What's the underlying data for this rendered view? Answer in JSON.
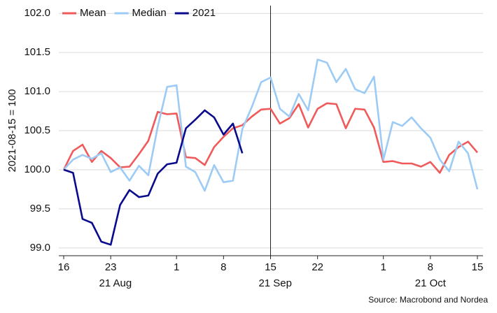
{
  "chart_data": {
    "type": "line",
    "y_label": "2021-08-15 = 100",
    "source": "Source: Macrobond and Nordea",
    "categories": [
      "2021-08-16",
      "2021-08-17",
      "2021-08-18",
      "2021-08-19",
      "2021-08-20",
      "2021-08-23",
      "2021-08-24",
      "2021-08-25",
      "2021-08-26",
      "2021-08-27",
      "2021-08-30",
      "2021-08-31",
      "2021-09-01",
      "2021-09-02",
      "2021-09-03",
      "2021-09-06",
      "2021-09-07",
      "2021-09-08",
      "2021-09-09",
      "2021-09-10",
      "2021-09-13",
      "2021-09-14",
      "2021-09-15",
      "2021-09-16",
      "2021-09-17",
      "2021-09-20",
      "2021-09-21",
      "2021-09-22",
      "2021-09-23",
      "2021-09-24",
      "2021-09-27",
      "2021-09-28",
      "2021-09-29",
      "2021-09-30",
      "2021-10-01",
      "2021-10-04",
      "2021-10-05",
      "2021-10-06",
      "2021-10-07",
      "2021-10-08",
      "2021-10-11",
      "2021-10-12",
      "2021-10-13",
      "2021-10-14",
      "2021-10-15"
    ],
    "xticks": [
      {
        "value": "2021-08-16",
        "label": "16"
      },
      {
        "value": "2021-08-23",
        "label": "23"
      },
      {
        "value": "2021-09-01",
        "label": "1"
      },
      {
        "value": "2021-09-08",
        "label": "8"
      },
      {
        "value": "2021-09-15",
        "label": "15"
      },
      {
        "value": "2021-09-22",
        "label": "22"
      },
      {
        "value": "2021-10-01",
        "label": "1"
      },
      {
        "value": "2021-10-08",
        "label": "8"
      },
      {
        "value": "2021-10-15",
        "label": "15"
      }
    ],
    "xgroups": [
      "21 Aug",
      "21 Sep",
      "21 Oct"
    ],
    "vline": "2021-09-15",
    "series": [
      {
        "name": "Mean",
        "color": "#f05a5a",
        "values": [
          100.0,
          100.24,
          100.32,
          100.1,
          100.24,
          100.15,
          100.03,
          100.04,
          100.2,
          100.37,
          100.74,
          100.71,
          100.72,
          100.16,
          100.15,
          100.06,
          100.29,
          100.42,
          100.53,
          100.57,
          100.68,
          100.77,
          100.78,
          100.59,
          100.66,
          100.84,
          100.54,
          100.78,
          100.85,
          100.84,
          100.53,
          100.78,
          100.77,
          100.54,
          100.1,
          100.11,
          100.08,
          100.08,
          100.04,
          100.1,
          99.96,
          100.19,
          100.29,
          100.36,
          100.22
        ]
      },
      {
        "name": "Median",
        "color": "#9ccbf5",
        "values": [
          100.0,
          100.13,
          100.19,
          100.14,
          100.21,
          99.97,
          100.03,
          99.86,
          100.05,
          99.93,
          100.55,
          101.06,
          101.08,
          100.04,
          99.97,
          99.73,
          100.06,
          99.84,
          99.86,
          100.52,
          100.8,
          101.12,
          101.18,
          100.78,
          100.68,
          100.97,
          100.76,
          101.41,
          101.37,
          101.12,
          101.29,
          101.03,
          100.98,
          101.19,
          100.13,
          100.61,
          100.56,
          100.67,
          100.53,
          100.41,
          100.13,
          99.98,
          100.36,
          100.21,
          99.75
        ]
      },
      {
        "name": "2021",
        "color": "#0a0a8c",
        "values": [
          100.0,
          99.96,
          99.37,
          99.32,
          99.08,
          99.04,
          99.55,
          99.74,
          99.65,
          99.67,
          99.95,
          100.07,
          100.09,
          100.53,
          100.64,
          100.76,
          100.67,
          100.45,
          100.59,
          100.21,
          null,
          null,
          null,
          null,
          null,
          null,
          null,
          null,
          null,
          null,
          null,
          null,
          null,
          null,
          null,
          null,
          null,
          null,
          null,
          null,
          null,
          null,
          null,
          null,
          null
        ]
      }
    ],
    "ylim": [
      98.9,
      102.1
    ],
    "yticks": [
      {
        "value": 99,
        "label": "99.0"
      },
      {
        "value": 99.5,
        "label": "99.5"
      },
      {
        "value": 100,
        "label": "100.0"
      },
      {
        "value": 100.5,
        "label": "100.5"
      },
      {
        "value": 101,
        "label": "101.0"
      },
      {
        "value": 101.5,
        "label": "101.5"
      },
      {
        "value": 102,
        "label": "102.0"
      }
    ],
    "grid": true,
    "legend": "top-left"
  }
}
